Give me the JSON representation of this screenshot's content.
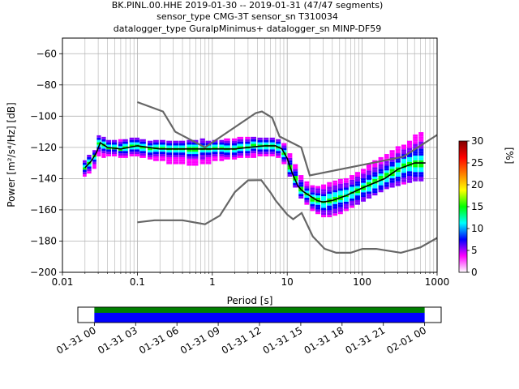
{
  "chart_data": {
    "type": "heatmap",
    "title_lines": [
      "BK.PINL.00.HHE   2019-01-30 -- 2019-01-31  (47/47 segments)",
      "sensor_type CMG-3T sensor_sn T310034",
      "datalogger_type GuralpMinimus+ datalogger_sn MINP-DF59"
    ],
    "xlabel": "Period [s]",
    "ylabel": "Power [m²/s⁴/Hz] [dB]",
    "x_scale": "log",
    "xlim": [
      0.01,
      1000
    ],
    "ylim": [
      -200,
      -50
    ],
    "x_ticks": [
      {
        "value": 0.01,
        "label": "0.01"
      },
      {
        "value": 0.1,
        "label": "0.1"
      },
      {
        "value": 1,
        "label": "1"
      },
      {
        "value": 10,
        "label": "10"
      },
      {
        "value": 100,
        "label": "100"
      },
      {
        "value": 1000,
        "label": "1000"
      }
    ],
    "y_ticks": [
      {
        "value": -60,
        "label": "−60"
      },
      {
        "value": -80,
        "label": "−80"
      },
      {
        "value": -100,
        "label": "−100"
      },
      {
        "value": -120,
        "label": "−120"
      },
      {
        "value": -140,
        "label": "−140"
      },
      {
        "value": -160,
        "label": "−160"
      },
      {
        "value": -180,
        "label": "−180"
      },
      {
        "value": -200,
        "label": "−200"
      }
    ],
    "grid": true,
    "colorbar": {
      "label": "[%]",
      "range": [
        0,
        30
      ],
      "ticks": [
        {
          "value": 0,
          "label": "0"
        },
        {
          "value": 5,
          "label": "5"
        },
        {
          "value": 10,
          "label": "10"
        },
        {
          "value": 15,
          "label": "15"
        },
        {
          "value": 20,
          "label": "20"
        },
        {
          "value": 25,
          "label": "25"
        },
        {
          "value": 30,
          "label": "30"
        }
      ],
      "colors": [
        "#ffffff",
        "#ff00ff",
        "#0000ff",
        "#00ffff",
        "#00ff00",
        "#ffff00",
        "#ff8000",
        "#ff0000",
        "#800000"
      ]
    },
    "noise_model_high": {
      "color": "#666666",
      "x": [
        0.1,
        0.22,
        0.32,
        0.8,
        3.8,
        4.6,
        6.3,
        7.9,
        15.4,
        20,
        354.8,
        1000
      ],
      "y": [
        -91,
        -97,
        -110,
        -120,
        -98,
        -97,
        -101,
        -113,
        -120,
        -138,
        -126,
        -112
      ]
    },
    "noise_model_low": {
      "color": "#666666",
      "x": [
        0.1,
        0.17,
        0.4,
        0.8,
        1.26,
        2.0,
        3.0,
        4.0,
        4.5,
        6.0,
        7.0,
        10.0,
        12.0,
        15.6,
        21.9,
        31.6,
        45.0,
        70.0,
        101.0,
        154.0,
        328.0,
        600.0,
        1000.0
      ],
      "y": [
        -168,
        -166.7,
        -166.7,
        -169.2,
        -163.7,
        -148.6,
        -141.1,
        -141,
        -141,
        -149,
        -154,
        -163,
        -166,
        -162,
        -177,
        -185,
        -187.5,
        -187.5,
        -185,
        -185,
        -187.5,
        -184,
        -178
      ]
    },
    "mode_line": {
      "color": "#000000",
      "x": [
        0.02,
        0.024,
        0.028,
        0.032,
        0.04,
        0.06,
        0.1,
        0.2,
        0.4,
        0.8,
        1.2,
        2,
        3,
        5,
        7,
        8.5,
        10,
        11,
        12,
        14,
        16,
        20,
        25,
        30,
        40,
        60,
        100,
        200,
        300,
        500,
        700
      ],
      "y": [
        -133,
        -129,
        -124,
        -117,
        -120,
        -121,
        -119,
        -121,
        -121,
        -121,
        -121,
        -121,
        -120,
        -119,
        -119,
        -121,
        -127,
        -133,
        -138,
        -145,
        -148,
        -151,
        -154,
        -155,
        -154,
        -151,
        -146,
        -140,
        -134,
        -130,
        -130
      ]
    },
    "density_columns": [
      {
        "x": 0.02,
        "lo": -138,
        "hi": -128,
        "mode": -133
      },
      {
        "x": 0.023,
        "lo": -136,
        "hi": -125,
        "mode": -130
      },
      {
        "x": 0.027,
        "lo": -133,
        "hi": -122,
        "mode": -126
      },
      {
        "x": 0.031,
        "lo": -125,
        "hi": -113,
        "mode": -118
      },
      {
        "x": 0.036,
        "lo": -126,
        "hi": -114,
        "mode": -119
      },
      {
        "x": 0.042,
        "lo": -125,
        "hi": -115,
        "mode": -120
      },
      {
        "x": 0.05,
        "lo": -125,
        "hi": -115,
        "mode": -120
      },
      {
        "x": 0.06,
        "lo": -126,
        "hi": -115,
        "mode": -121
      },
      {
        "x": 0.07,
        "lo": -126,
        "hi": -115,
        "mode": -120
      },
      {
        "x": 0.085,
        "lo": -125,
        "hi": -114,
        "mode": -119
      },
      {
        "x": 0.1,
        "lo": -125,
        "hi": -114,
        "mode": -119
      },
      {
        "x": 0.12,
        "lo": -126,
        "hi": -115,
        "mode": -120
      },
      {
        "x": 0.15,
        "lo": -127,
        "hi": -116,
        "mode": -121
      },
      {
        "x": 0.18,
        "lo": -128,
        "hi": -116,
        "mode": -121
      },
      {
        "x": 0.22,
        "lo": -128,
        "hi": -116,
        "mode": -121
      },
      {
        "x": 0.27,
        "lo": -130,
        "hi": -116,
        "mode": -121
      },
      {
        "x": 0.33,
        "lo": -130,
        "hi": -116,
        "mode": -121
      },
      {
        "x": 0.4,
        "lo": -130,
        "hi": -116,
        "mode": -121
      },
      {
        "x": 0.5,
        "lo": -131,
        "hi": -116,
        "mode": -121
      },
      {
        "x": 0.6,
        "lo": -131,
        "hi": -116,
        "mode": -121
      },
      {
        "x": 0.75,
        "lo": -130,
        "hi": -115,
        "mode": -121
      },
      {
        "x": 0.9,
        "lo": -130,
        "hi": -116,
        "mode": -121
      },
      {
        "x": 1.1,
        "lo": -128,
        "hi": -116,
        "mode": -121
      },
      {
        "x": 1.35,
        "lo": -128,
        "hi": -116,
        "mode": -121
      },
      {
        "x": 1.6,
        "lo": -127,
        "hi": -115,
        "mode": -121
      },
      {
        "x": 2.0,
        "lo": -127,
        "hi": -115,
        "mode": -121
      },
      {
        "x": 2.4,
        "lo": -126,
        "hi": -114,
        "mode": -120
      },
      {
        "x": 3.0,
        "lo": -126,
        "hi": -114,
        "mode": -120
      },
      {
        "x": 3.6,
        "lo": -126,
        "hi": -114,
        "mode": -119
      },
      {
        "x": 4.4,
        "lo": -125,
        "hi": -114,
        "mode": -119
      },
      {
        "x": 5.3,
        "lo": -125,
        "hi": -114,
        "mode": -119
      },
      {
        "x": 6.4,
        "lo": -125,
        "hi": -114,
        "mode": -119
      },
      {
        "x": 7.7,
        "lo": -126,
        "hi": -115,
        "mode": -120
      },
      {
        "x": 9.2,
        "lo": -130,
        "hi": -118,
        "mode": -124
      },
      {
        "x": 11,
        "lo": -138,
        "hi": -124,
        "mode": -133
      },
      {
        "x": 13,
        "lo": -145,
        "hi": -131,
        "mode": -140
      },
      {
        "x": 15.5,
        "lo": -152,
        "hi": -138,
        "mode": -147
      },
      {
        "x": 18.5,
        "lo": -156,
        "hi": -142,
        "mode": -150
      },
      {
        "x": 22,
        "lo": -160,
        "hi": -144,
        "mode": -153
      },
      {
        "x": 26,
        "lo": -162,
        "hi": -145,
        "mode": -154
      },
      {
        "x": 31,
        "lo": -164,
        "hi": -144,
        "mode": -155
      },
      {
        "x": 37,
        "lo": -164,
        "hi": -143,
        "mode": -154
      },
      {
        "x": 44,
        "lo": -163,
        "hi": -142,
        "mode": -153
      },
      {
        "x": 52,
        "lo": -162,
        "hi": -141,
        "mode": -152
      },
      {
        "x": 62,
        "lo": -160,
        "hi": -140,
        "mode": -151
      },
      {
        "x": 74,
        "lo": -158,
        "hi": -138,
        "mode": -149
      },
      {
        "x": 88,
        "lo": -156,
        "hi": -136,
        "mode": -148
      },
      {
        "x": 105,
        "lo": -154,
        "hi": -134,
        "mode": -146
      },
      {
        "x": 125,
        "lo": -152,
        "hi": -131,
        "mode": -144
      },
      {
        "x": 150,
        "lo": -150,
        "hi": -128,
        "mode": -142
      },
      {
        "x": 180,
        "lo": -148,
        "hi": -126,
        "mode": -140
      },
      {
        "x": 215,
        "lo": -146,
        "hi": -124,
        "mode": -138
      },
      {
        "x": 255,
        "lo": -145,
        "hi": -122,
        "mode": -136
      },
      {
        "x": 305,
        "lo": -144,
        "hi": -120,
        "mode": -134
      },
      {
        "x": 365,
        "lo": -143,
        "hi": -118,
        "mode": -132
      },
      {
        "x": 435,
        "lo": -142,
        "hi": -116,
        "mode": -131
      },
      {
        "x": 520,
        "lo": -141,
        "hi": -112,
        "mode": -130
      },
      {
        "x": 620,
        "lo": -141,
        "hi": -110,
        "mode": -130
      }
    ],
    "timeline": {
      "tick_labels": [
        "01-31 00",
        "01-31 03",
        "01-31 06",
        "01-31 09",
        "01-31 12",
        "01-31 15",
        "01-31 18",
        "01-31 21",
        "02-01 00"
      ],
      "coverage_start_hours": 0,
      "coverage_end_hours": 24,
      "axis_start_hours": -1.2,
      "axis_end_hours": 25.2,
      "coverage_color": "#0000ff",
      "data_color": "#008000"
    }
  }
}
